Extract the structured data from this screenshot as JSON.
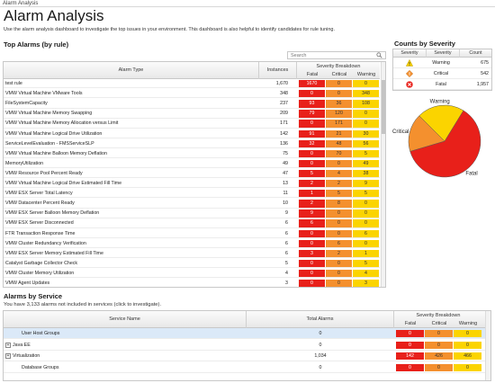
{
  "breadcrumb": "Alarm Analysis",
  "title": "Alarm Analysis",
  "description": "Use the alarm analysis dashboard to investigate the top issues in your environment. This dashboard is also helpful to identify candidates for rule tuning.",
  "top_alarms": {
    "title": "Top Alarms (by rule)",
    "search_placeholder": "Search",
    "headers": {
      "alarm_type": "Alarm Type",
      "instances": "Instances",
      "severity_breakdown": "Severity Breakdown",
      "fatal": "Fatal",
      "critical": "Critical",
      "warning": "Warning"
    },
    "rows": [
      {
        "name": "test rule",
        "instances": "1,670",
        "fatal": "1670",
        "critical": "0",
        "warning": "0"
      },
      {
        "name": "VMW Virtual Machine VMware Tools",
        "instances": "348",
        "fatal": "0",
        "critical": "0",
        "warning": "348"
      },
      {
        "name": "FileSystemCapacity",
        "instances": "237",
        "fatal": "93",
        "critical": "36",
        "warning": "108"
      },
      {
        "name": "VMW Virtual Machine Memory Swapping",
        "instances": "209",
        "fatal": "79",
        "critical": "120",
        "warning": "0"
      },
      {
        "name": "VMW Virtual Machine Memory Allocation versus Limit",
        "instances": "171",
        "fatal": "0",
        "critical": "171",
        "warning": "0"
      },
      {
        "name": "VMW Virtual Machine Logical Drive Utilization",
        "instances": "142",
        "fatal": "91",
        "critical": "21",
        "warning": "30"
      },
      {
        "name": "ServiceLevelEvaluation - FMSServiceSLP",
        "instances": "136",
        "fatal": "32",
        "critical": "48",
        "warning": "56"
      },
      {
        "name": "VMW Virtual Machine Balloon Memory Deflation",
        "instances": "75",
        "fatal": "0",
        "critical": "70",
        "warning": "5"
      },
      {
        "name": "MemoryUtilization",
        "instances": "49",
        "fatal": "0",
        "critical": "0",
        "warning": "49"
      },
      {
        "name": "VMW Resource Pool Percent Ready",
        "instances": "47",
        "fatal": "5",
        "critical": "4",
        "warning": "38"
      },
      {
        "name": "VMW Virtual Machine Logical Drive Estimated Fill Time",
        "instances": "13",
        "fatal": "2",
        "critical": "2",
        "warning": "9"
      },
      {
        "name": "VMW ESX Server Total Latency",
        "instances": "11",
        "fatal": "1",
        "critical": "5",
        "warning": "5"
      },
      {
        "name": "VMW Datacenter Percent Ready",
        "instances": "10",
        "fatal": "2",
        "critical": "8",
        "warning": "0"
      },
      {
        "name": "VMW ESX Server Balloon Memory Deflation",
        "instances": "9",
        "fatal": "9",
        "critical": "0",
        "warning": "0"
      },
      {
        "name": "VMW ESX Server Disconnected",
        "instances": "6",
        "fatal": "6",
        "critical": "0",
        "warning": "0"
      },
      {
        "name": "FTR Transaction Response Time",
        "instances": "6",
        "fatal": "0",
        "critical": "0",
        "warning": "6"
      },
      {
        "name": "VMW Cluster Redundancy Verification",
        "instances": "6",
        "fatal": "0",
        "critical": "6",
        "warning": "0"
      },
      {
        "name": "VMW ESX Server Memory Estimated Fill Time",
        "instances": "6",
        "fatal": "3",
        "critical": "2",
        "warning": "1"
      },
      {
        "name": "Catalyst Garbage Collector Check",
        "instances": "5",
        "fatal": "0",
        "critical": "0",
        "warning": "5"
      },
      {
        "name": "VMW Cluster Memory Utilization",
        "instances": "4",
        "fatal": "0",
        "critical": "0",
        "warning": "4"
      },
      {
        "name": "VMW Agent Updates",
        "instances": "3",
        "fatal": "0",
        "critical": "0",
        "warning": "3"
      }
    ]
  },
  "counts": {
    "title": "Counts by Severity",
    "headers": {
      "severity": "Severity",
      "severity2": "Severity",
      "count": "Count"
    },
    "rows": [
      {
        "icon": "warning-icon",
        "label": "Warning",
        "count": "675",
        "color": "#fbd400"
      },
      {
        "icon": "critical-icon",
        "label": "Critical",
        "count": "542",
        "color": "#f4902e"
      },
      {
        "icon": "fatal-icon",
        "label": "Fatal",
        "count": "1,957",
        "color": "#e8201a"
      }
    ]
  },
  "chart_data": {
    "type": "pie",
    "categories": [
      "Fatal",
      "Critical",
      "Warning"
    ],
    "values": [
      1957,
      542,
      675
    ],
    "colors": [
      "#e8201a",
      "#f4902e",
      "#fbd400"
    ],
    "labels": [
      "Fatal",
      "Critical",
      "Warning"
    ]
  },
  "services": {
    "title": "Alarms by Service",
    "note": "You have 3,133 alarms not included in services (click to investigate).",
    "headers": {
      "service_name": "Service Name",
      "total_alarms": "Total Alarms",
      "severity_breakdown": "Severity Breakdown",
      "fatal": "Fatal",
      "critical": "Critical",
      "warning": "Warning"
    },
    "rows": [
      {
        "name": "User Host Groups",
        "expander": "",
        "total": "0",
        "fatal": "0",
        "critical": "0",
        "warning": "0",
        "selected": true
      },
      {
        "name": "Java EE",
        "expander": "+",
        "total": "0",
        "fatal": "0",
        "critical": "0",
        "warning": "0",
        "selected": false
      },
      {
        "name": "Virtualization",
        "expander": "+",
        "total": "1,034",
        "fatal": "142",
        "critical": "426",
        "warning": "466",
        "selected": false
      },
      {
        "name": "Database Groups",
        "expander": "",
        "total": "0",
        "fatal": "0",
        "critical": "0",
        "warning": "0",
        "selected": false
      }
    ]
  }
}
